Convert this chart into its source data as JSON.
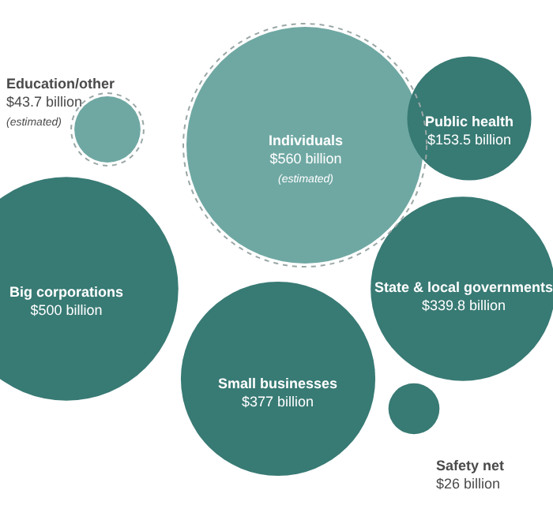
{
  "chart_data": {
    "type": "other",
    "categories": [
      "Individuals",
      "Education/other",
      "Public health",
      "Big corporations",
      "State & local governments",
      "Small businesses",
      "Safety net"
    ],
    "values": [
      560,
      43.7,
      153.5,
      500,
      339.8,
      377,
      26
    ],
    "value_labels": [
      "$560 billion",
      "$43.7 billion",
      "$153.5 billion",
      "$500 billion",
      "$339.8 billion",
      "$377 billion",
      "$26 billion"
    ],
    "colors": [
      "#6fa8a3",
      "#6fa8a3",
      "#387a74",
      "#387a74",
      "#387a74",
      "#387a74",
      "#387a74"
    ],
    "annotations": [
      {
        "text": "(estimated)",
        "x": "Individuals"
      },
      {
        "text": "(estimated)",
        "x": "Education/other"
      }
    ]
  }
}
